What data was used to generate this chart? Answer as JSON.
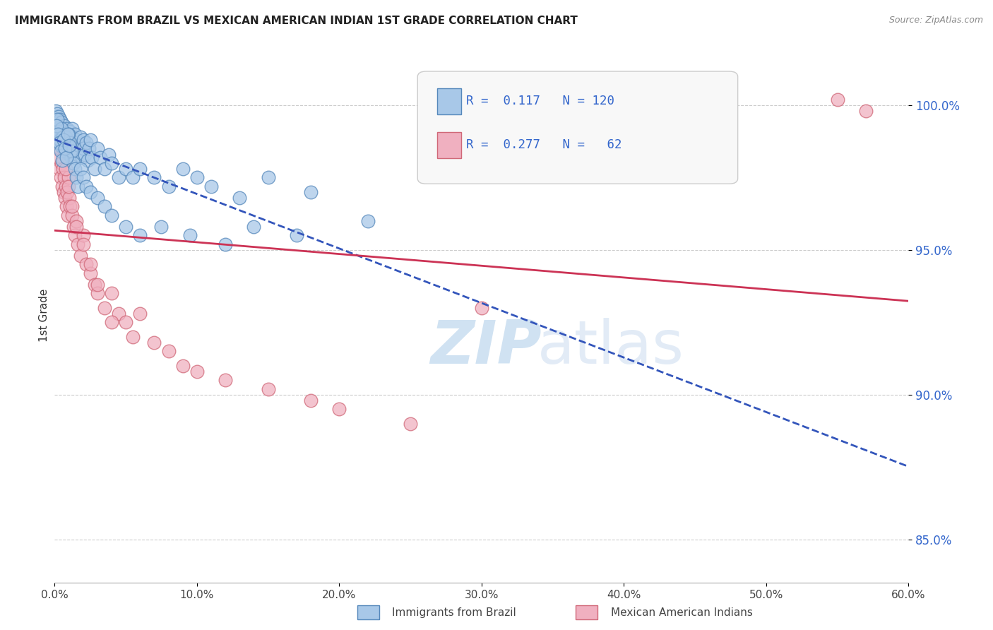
{
  "title": "IMMIGRANTS FROM BRAZIL VS MEXICAN AMERICAN INDIAN 1ST GRADE CORRELATION CHART",
  "source": "Source: ZipAtlas.com",
  "ylabel": "1st Grade",
  "x_tick_labels": [
    "0.0%",
    "10.0%",
    "20.0%",
    "30.0%",
    "40.0%",
    "50.0%",
    "60.0%"
  ],
  "x_tick_values": [
    0.0,
    10.0,
    20.0,
    30.0,
    40.0,
    50.0,
    60.0
  ],
  "y_tick_labels": [
    "85.0%",
    "90.0%",
    "95.0%",
    "100.0%"
  ],
  "y_tick_values": [
    85.0,
    90.0,
    95.0,
    100.0
  ],
  "xlim": [
    0.0,
    60.0
  ],
  "ylim": [
    83.5,
    102.0
  ],
  "brazil_color": "#a8c8e8",
  "brazil_edge_color": "#5588bb",
  "mexican_color": "#f0b0c0",
  "mexican_edge_color": "#d06878",
  "brazil_line_color": "#3355bb",
  "mexican_line_color": "#cc3355",
  "legend_brazil_r": "0.117",
  "legend_brazil_n": "120",
  "legend_mexican_r": "0.277",
  "legend_mexican_n": "62",
  "legend_label_brazil": "Immigrants from Brazil",
  "legend_label_mexican": "Mexican American Indians",
  "watermark_zip": "ZIP",
  "watermark_atlas": "atlas",
  "brazil_scatter_x": [
    0.1,
    0.1,
    0.1,
    0.15,
    0.15,
    0.2,
    0.2,
    0.2,
    0.25,
    0.25,
    0.3,
    0.3,
    0.3,
    0.35,
    0.35,
    0.4,
    0.4,
    0.4,
    0.45,
    0.45,
    0.5,
    0.5,
    0.5,
    0.55,
    0.6,
    0.6,
    0.65,
    0.7,
    0.7,
    0.75,
    0.8,
    0.8,
    0.85,
    0.9,
    0.9,
    0.95,
    1.0,
    1.0,
    1.05,
    1.1,
    1.1,
    1.15,
    1.2,
    1.2,
    1.3,
    1.3,
    1.4,
    1.4,
    1.5,
    1.5,
    1.6,
    1.7,
    1.8,
    1.9,
    2.0,
    2.0,
    2.1,
    2.2,
    2.3,
    2.4,
    2.5,
    2.6,
    2.8,
    3.0,
    3.2,
    3.5,
    3.8,
    4.0,
    4.5,
    5.0,
    5.5,
    6.0,
    7.0,
    8.0,
    9.0,
    10.0,
    11.0,
    13.0,
    15.0,
    18.0,
    0.2,
    0.3,
    0.4,
    0.5,
    0.6,
    0.7,
    0.8,
    0.9,
    1.0,
    1.1,
    1.2,
    1.3,
    1.4,
    1.5,
    1.6,
    1.8,
    2.0,
    2.2,
    2.5,
    3.0,
    3.5,
    4.0,
    5.0,
    6.0,
    7.5,
    9.5,
    12.0,
    14.0,
    17.0,
    22.0,
    0.15,
    0.25,
    0.35,
    0.45,
    0.55,
    0.65,
    0.75,
    0.85,
    0.95,
    1.05
  ],
  "brazil_scatter_y": [
    99.8,
    99.5,
    99.2,
    99.6,
    99.3,
    99.7,
    99.4,
    99.0,
    99.5,
    98.8,
    99.2,
    98.9,
    99.6,
    99.4,
    98.7,
    99.1,
    98.8,
    99.5,
    99.3,
    98.6,
    99.0,
    98.7,
    99.4,
    98.9,
    99.2,
    98.6,
    99.1,
    98.8,
    99.3,
    98.5,
    99.0,
    98.7,
    98.4,
    99.2,
    98.8,
    98.5,
    99.0,
    98.7,
    98.3,
    99.1,
    98.6,
    98.2,
    99.2,
    98.9,
    98.5,
    98.2,
    99.0,
    98.7,
    98.4,
    98.8,
    98.3,
    98.6,
    98.9,
    98.2,
    98.8,
    98.5,
    98.3,
    98.7,
    98.1,
    98.5,
    98.8,
    98.2,
    97.8,
    98.5,
    98.2,
    97.8,
    98.3,
    98.0,
    97.5,
    97.8,
    97.5,
    97.8,
    97.5,
    97.2,
    97.8,
    97.5,
    97.2,
    96.8,
    97.5,
    97.0,
    99.5,
    99.1,
    98.8,
    99.2,
    98.9,
    98.5,
    98.9,
    98.6,
    99.0,
    98.7,
    98.4,
    98.0,
    97.8,
    97.5,
    97.2,
    97.8,
    97.5,
    97.2,
    97.0,
    96.8,
    96.5,
    96.2,
    95.8,
    95.5,
    95.8,
    95.5,
    95.2,
    95.8,
    95.5,
    96.0,
    99.3,
    99.0,
    98.7,
    98.4,
    98.1,
    98.8,
    98.5,
    98.2,
    99.0,
    98.6
  ],
  "mexican_scatter_x": [
    0.1,
    0.15,
    0.2,
    0.25,
    0.3,
    0.35,
    0.4,
    0.45,
    0.5,
    0.55,
    0.6,
    0.65,
    0.7,
    0.75,
    0.8,
    0.85,
    0.9,
    0.95,
    1.0,
    1.05,
    1.1,
    1.2,
    1.3,
    1.4,
    1.5,
    1.6,
    1.8,
    2.0,
    2.2,
    2.5,
    2.8,
    3.0,
    3.5,
    4.0,
    4.5,
    5.0,
    5.5,
    6.0,
    7.0,
    8.0,
    9.0,
    10.0,
    12.0,
    15.0,
    18.0,
    20.0,
    25.0,
    30.0,
    0.3,
    0.4,
    0.5,
    0.6,
    0.8,
    1.0,
    1.2,
    1.5,
    2.0,
    2.5,
    3.0,
    4.0,
    55.0,
    57.0
  ],
  "mexican_scatter_y": [
    99.0,
    98.5,
    98.8,
    98.2,
    99.2,
    97.8,
    98.5,
    97.5,
    98.0,
    97.2,
    97.8,
    97.0,
    97.5,
    96.8,
    97.2,
    96.5,
    97.0,
    96.2,
    97.5,
    96.8,
    96.5,
    96.2,
    95.8,
    95.5,
    96.0,
    95.2,
    94.8,
    95.5,
    94.5,
    94.2,
    93.8,
    93.5,
    93.0,
    93.5,
    92.8,
    92.5,
    92.0,
    92.8,
    91.8,
    91.5,
    91.0,
    90.8,
    90.5,
    90.2,
    89.8,
    89.5,
    89.0,
    93.0,
    99.5,
    99.2,
    98.8,
    98.5,
    97.8,
    97.2,
    96.5,
    95.8,
    95.2,
    94.5,
    93.8,
    92.5,
    100.2,
    99.8
  ]
}
